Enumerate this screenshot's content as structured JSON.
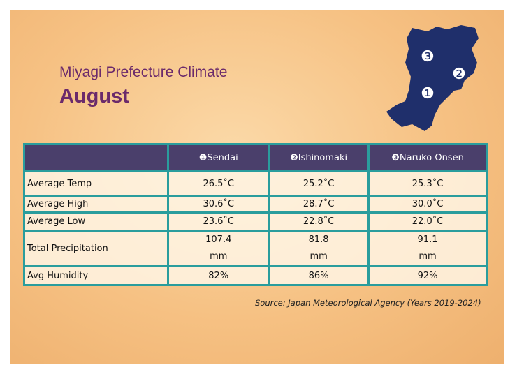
{
  "header": {
    "title": "Miyagi Prefecture Climate",
    "subtitle": "August"
  },
  "map": {
    "markers": [
      "❸",
      "❷",
      "❶"
    ]
  },
  "table": {
    "columns": [
      "❶Sendai",
      "❷Ishinomaki",
      "❸Naruko Onsen"
    ],
    "rows": [
      {
        "label": "Average Temp",
        "cells": [
          [
            "26.5˚C"
          ],
          [
            "25.2˚C"
          ],
          [
            "25.3˚C"
          ]
        ]
      },
      {
        "label": "Average High",
        "cells": [
          [
            "30.6˚C"
          ],
          [
            "28.7˚C"
          ],
          [
            "30.0˚C"
          ]
        ]
      },
      {
        "label": "Average Low",
        "cells": [
          [
            "23.6˚C"
          ],
          [
            "22.8˚C"
          ],
          [
            "22.0˚C"
          ]
        ]
      },
      {
        "label": "Total Precipitation",
        "cells": [
          [
            "107.4",
            "mm"
          ],
          [
            "81.8",
            "mm"
          ],
          [
            "91.1",
            "mm"
          ]
        ]
      },
      {
        "label": "Avg Humidity",
        "cells": [
          [
            "82%"
          ],
          [
            "86%"
          ],
          [
            "92%"
          ]
        ]
      }
    ]
  },
  "source": "Source: Japan Meteorological Agency (Years 2019-2024)"
}
